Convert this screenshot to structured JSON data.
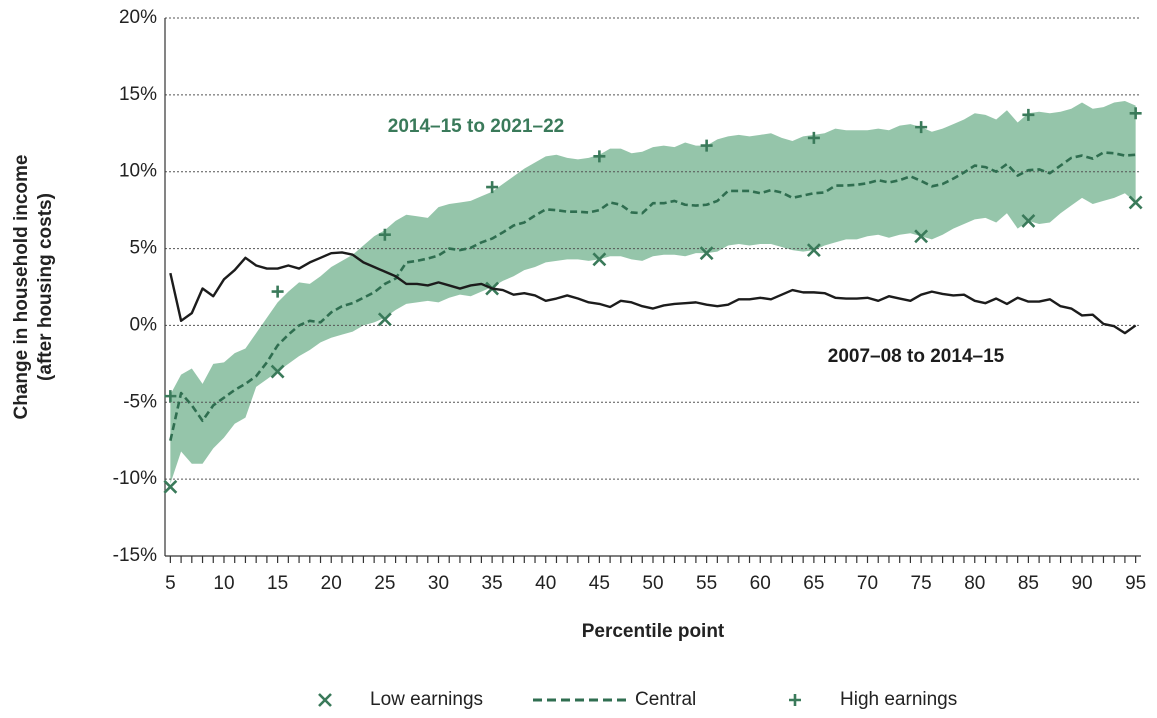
{
  "chart_data": {
    "type": "line",
    "y_label": [
      "Change in household income",
      "(after housing costs)"
    ],
    "x_label": "Percentile point",
    "xlim": [
      4.5,
      95.5
    ],
    "xticks": [
      5,
      10,
      15,
      20,
      25,
      30,
      35,
      40,
      45,
      50,
      55,
      60,
      65,
      70,
      75,
      80,
      85,
      90,
      95
    ],
    "ylim": [
      -15,
      20
    ],
    "yticks": [
      {
        "value": -15,
        "label": "-15%"
      },
      {
        "value": -10,
        "label": "-10%"
      },
      {
        "value": -5,
        "label": "-5%"
      },
      {
        "value": 0,
        "label": "0%"
      },
      {
        "value": 5,
        "label": "5%"
      },
      {
        "value": 10,
        "label": "10%"
      },
      {
        "value": 15,
        "label": "15%"
      },
      {
        "value": 20,
        "label": "20%"
      }
    ],
    "grid": true,
    "x": [
      5,
      6,
      7,
      8,
      9,
      10,
      11,
      12,
      13,
      14,
      15,
      16,
      17,
      18,
      19,
      20,
      21,
      22,
      23,
      24,
      25,
      26,
      27,
      28,
      29,
      30,
      31,
      32,
      33,
      34,
      35,
      36,
      37,
      38,
      39,
      40,
      41,
      42,
      43,
      44,
      45,
      46,
      47,
      48,
      49,
      50,
      51,
      52,
      53,
      54,
      55,
      56,
      57,
      58,
      59,
      60,
      61,
      62,
      63,
      64,
      65,
      66,
      67,
      68,
      69,
      70,
      71,
      72,
      73,
      74,
      75,
      76,
      77,
      78,
      79,
      80,
      81,
      82,
      83,
      84,
      85,
      86,
      87,
      88,
      89,
      90,
      91,
      92,
      93,
      94,
      95
    ],
    "band": {
      "label": "2014–15 to 2021–22",
      "color": "#8fc2a5",
      "upper": [
        -4.5,
        -3.2,
        -2.8,
        -3.8,
        -2.5,
        -2.4,
        -1.8,
        -1.5,
        -0.5,
        0.5,
        1.5,
        2.2,
        2.8,
        2.7,
        3.2,
        3.8,
        4.2,
        4.6,
        5.2,
        5.8,
        6.2,
        6.8,
        7.2,
        7.1,
        7.0,
        7.7,
        7.9,
        8.0,
        8.1,
        8.4,
        8.7,
        9.2,
        9.7,
        10.2,
        10.6,
        11.0,
        11.1,
        10.9,
        10.8,
        10.9,
        11.1,
        11.5,
        11.5,
        11.2,
        11.3,
        11.6,
        11.7,
        11.6,
        11.9,
        11.7,
        11.7,
        12.1,
        12.3,
        12.4,
        12.3,
        12.4,
        12.5,
        12.2,
        12.0,
        12.3,
        12.4,
        12.5,
        12.8,
        12.7,
        12.7,
        12.7,
        12.8,
        12.7,
        13.0,
        13.1,
        12.9,
        12.6,
        12.8,
        13.1,
        13.4,
        13.8,
        13.7,
        13.4,
        14.0,
        13.2,
        13.8,
        13.9,
        13.8,
        13.9,
        14.1,
        14.5,
        14.1,
        14.2,
        14.5,
        14.6,
        14.3
      ],
      "lower": [
        -10.3,
        -8.2,
        -9.0,
        -9.0,
        -8.0,
        -7.3,
        -6.4,
        -6.0,
        -4.0,
        -3.5,
        -3.0,
        -2.5,
        -2.0,
        -1.6,
        -1.1,
        -0.8,
        -0.6,
        -0.4,
        0,
        0.2,
        0.5,
        1.0,
        1.4,
        1.5,
        1.6,
        1.5,
        1.8,
        2.0,
        1.9,
        2.2,
        2.5,
        2.9,
        3.2,
        3.6,
        3.8,
        4.1,
        4.2,
        4.3,
        4.3,
        4.2,
        4.3,
        4.5,
        4.5,
        4.3,
        4.2,
        4.5,
        4.6,
        4.6,
        4.5,
        4.7,
        4.7,
        4.8,
        5.2,
        5.3,
        5.2,
        5.3,
        5.3,
        5.1,
        4.9,
        4.8,
        4.9,
        5.2,
        5.4,
        5.6,
        5.6,
        5.8,
        5.9,
        5.7,
        5.9,
        6.0,
        5.8,
        5.6,
        5.9,
        6.3,
        6.6,
        6.9,
        7.0,
        6.7,
        7.3,
        6.3,
        6.8,
        6.6,
        6.7,
        7.3,
        7.8,
        8.3,
        7.9,
        8.1,
        8.3,
        8.6,
        8.0
      ]
    },
    "series": [
      {
        "name": "Low earnings",
        "color": "#3a7a5a",
        "marker": "x",
        "x": [
          5,
          15,
          25,
          35,
          45,
          55,
          65,
          75,
          85,
          95
        ],
        "values": [
          -10.5,
          -3.0,
          0.4,
          2.4,
          4.3,
          4.7,
          4.9,
          5.8,
          6.8,
          8.0
        ]
      },
      {
        "name": "Central",
        "color": "#2f6e50",
        "dashed": true,
        "values": [
          -7.5,
          -4.4,
          -5.2,
          -6.2,
          -5.2,
          -4.7,
          -4.2,
          -3.8,
          -3.3,
          -2.4,
          -1.3,
          -0.6,
          0,
          0.3,
          0.2,
          0.85,
          1.25,
          1.45,
          1.8,
          2.15,
          2.7,
          3.05,
          4.1,
          4.2,
          4.35,
          4.55,
          5.0,
          4.9,
          5.05,
          5.4,
          5.65,
          6.05,
          6.5,
          6.7,
          7.15,
          7.55,
          7.5,
          7.4,
          7.4,
          7.35,
          7.5,
          8.0,
          7.85,
          7.35,
          7.3,
          7.95,
          7.95,
          8.1,
          7.85,
          7.8,
          7.85,
          8.1,
          8.75,
          8.75,
          8.75,
          8.6,
          8.8,
          8.65,
          8.3,
          8.45,
          8.6,
          8.65,
          9.1,
          9.1,
          9.15,
          9.25,
          9.45,
          9.3,
          9.45,
          9.7,
          9.4,
          9.05,
          9.2,
          9.55,
          9.95,
          10.4,
          10.3,
          10.0,
          10.5,
          9.75,
          10.1,
          10.15,
          9.9,
          10.4,
          10.9,
          11.05,
          10.85,
          11.25,
          11.2,
          11.05,
          11.1
        ]
      },
      {
        "name": "High earnings",
        "color": "#3a7a5a",
        "marker": "+",
        "x": [
          5,
          15,
          25,
          35,
          45,
          55,
          65,
          75,
          85,
          95
        ],
        "values": [
          -4.6,
          2.2,
          5.9,
          9.0,
          11.0,
          11.7,
          12.2,
          12.9,
          13.7,
          13.8
        ]
      },
      {
        "name": "2007–08 to 2014–15",
        "color": "#1c1c1c",
        "legend": false,
        "values": [
          3.4,
          0.3,
          0.8,
          2.4,
          1.9,
          3.0,
          3.6,
          4.4,
          3.9,
          3.7,
          3.7,
          3.9,
          3.7,
          4.1,
          4.4,
          4.7,
          4.75,
          4.6,
          4.1,
          3.8,
          3.5,
          3.2,
          2.7,
          2.7,
          2.6,
          2.8,
          2.6,
          2.4,
          2.6,
          2.7,
          2.4,
          2.3,
          2.0,
          2.1,
          1.95,
          1.6,
          1.75,
          1.95,
          1.75,
          1.5,
          1.4,
          1.2,
          1.6,
          1.5,
          1.25,
          1.1,
          1.3,
          1.4,
          1.45,
          1.5,
          1.35,
          1.25,
          1.35,
          1.7,
          1.7,
          1.8,
          1.7,
          2.0,
          2.3,
          2.15,
          2.15,
          2.1,
          1.8,
          1.75,
          1.75,
          1.8,
          1.6,
          1.9,
          1.75,
          1.6,
          2.0,
          2.2,
          2.05,
          1.95,
          2.0,
          1.6,
          1.45,
          1.75,
          1.4,
          1.8,
          1.55,
          1.55,
          1.7,
          1.25,
          1.1,
          0.65,
          0.7,
          0.1,
          -0.05,
          -0.5,
          0.0
        ]
      }
    ]
  }
}
